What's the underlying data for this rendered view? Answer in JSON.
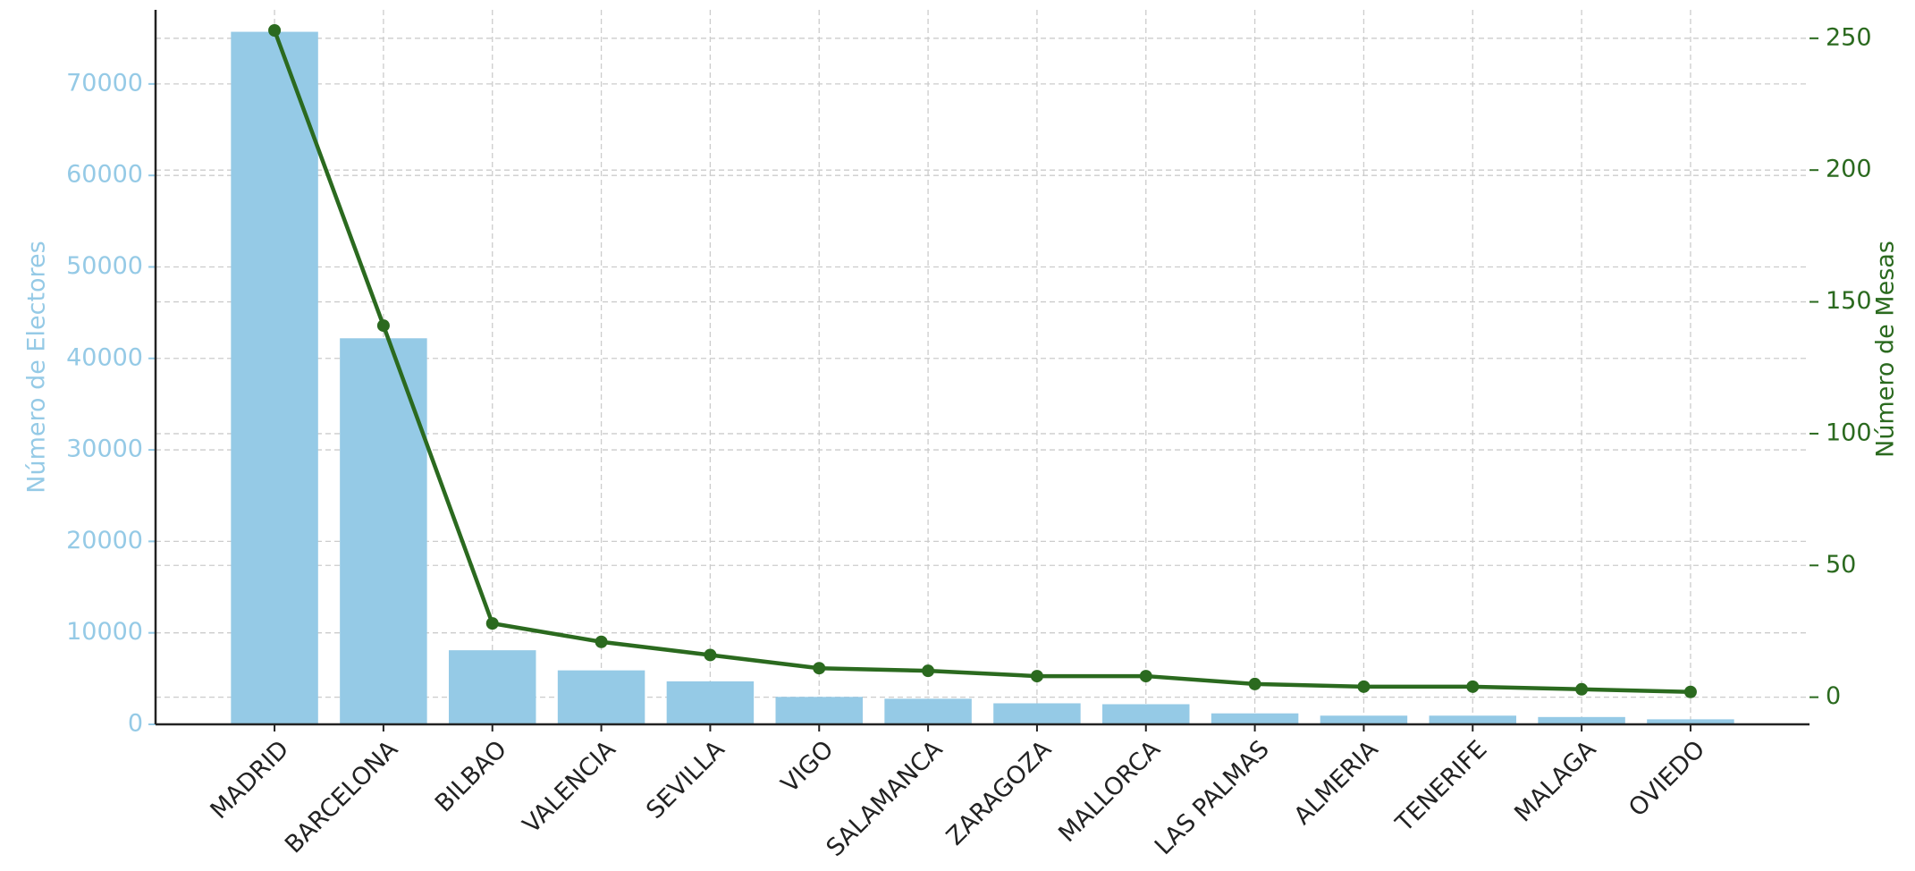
{
  "chart_data": {
    "type": "bar",
    "categories": [
      "MADRID",
      "BARCELONA",
      "BILBAO",
      "VALENCIA",
      "SEVILLA",
      "VIGO",
      "SALAMANCA",
      "ZARAGOZA",
      "MALLORCA",
      "LAS PALMAS",
      "ALMERIA",
      "TENERIFE",
      "MALAGA",
      "OVIEDO"
    ],
    "series": [
      {
        "type": "bar",
        "axis": "y",
        "color": "#95cae6",
        "values": [
          75700,
          42200,
          8100,
          5900,
          4700,
          3000,
          2800,
          2300,
          2200,
          1200,
          950,
          950,
          800,
          550
        ]
      },
      {
        "type": "line",
        "axis": "y2",
        "color": "#2b6a1f",
        "values": [
          253,
          141,
          28,
          21,
          16,
          11,
          10,
          8,
          8,
          5,
          4,
          4,
          3,
          2
        ]
      }
    ],
    "ylabel": "Número de Electores",
    "y2label": "Número de Mesas",
    "ylim": [
      0,
      78100
    ],
    "yticks": [
      0,
      10000,
      20000,
      30000,
      40000,
      50000,
      60000,
      70000
    ],
    "y2lim": [
      -10.3,
      260.8
    ],
    "y2ticks": [
      0,
      50,
      100,
      150,
      200,
      250
    ],
    "grid": true
  }
}
